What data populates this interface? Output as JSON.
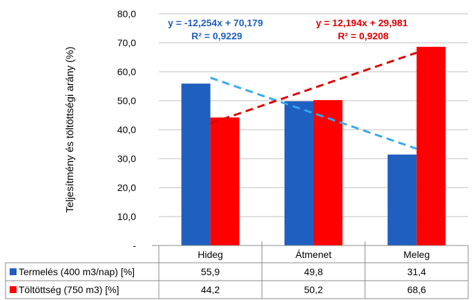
{
  "chart_data": {
    "type": "bar",
    "ylabel": "Teljesítmény és töltöttségi arány (%)",
    "ylim": [
      0,
      80
    ],
    "yticks": [
      "-",
      "10,0",
      "20,0",
      "30,0",
      "40,0",
      "50,0",
      "60,0",
      "70,0",
      "80,0"
    ],
    "grid": true,
    "categories": [
      "Hideg",
      "Átmenet",
      "Meleg"
    ],
    "series": [
      {
        "name": "Termelés (400 m3/nap) [%]",
        "color": "#1F5FBF",
        "values": [
          55.9,
          49.8,
          31.4
        ],
        "labels": [
          "55,9",
          "49,8",
          "31,4"
        ]
      },
      {
        "name": "Töltöttség (750 m3) [%]",
        "color": "#FF0000",
        "values": [
          44.2,
          50.2,
          68.6
        ],
        "labels": [
          "44,2",
          "50,2",
          "68,6"
        ]
      }
    ],
    "trendlines": [
      {
        "series": 0,
        "slope": -12.254,
        "intercept": 70.179,
        "color": "#33AAEE",
        "text_color": "#1F5FBF",
        "equation": "y = -12,254x + 70,179",
        "r2": "R² = 0,9229"
      },
      {
        "series": 1,
        "slope": 12.194,
        "intercept": 29.981,
        "color": "#DD0000",
        "text_color": "#DD0000",
        "equation": "y = 12,194x + 29,981",
        "r2": "R² = 0,9208"
      }
    ],
    "data_table": true
  }
}
